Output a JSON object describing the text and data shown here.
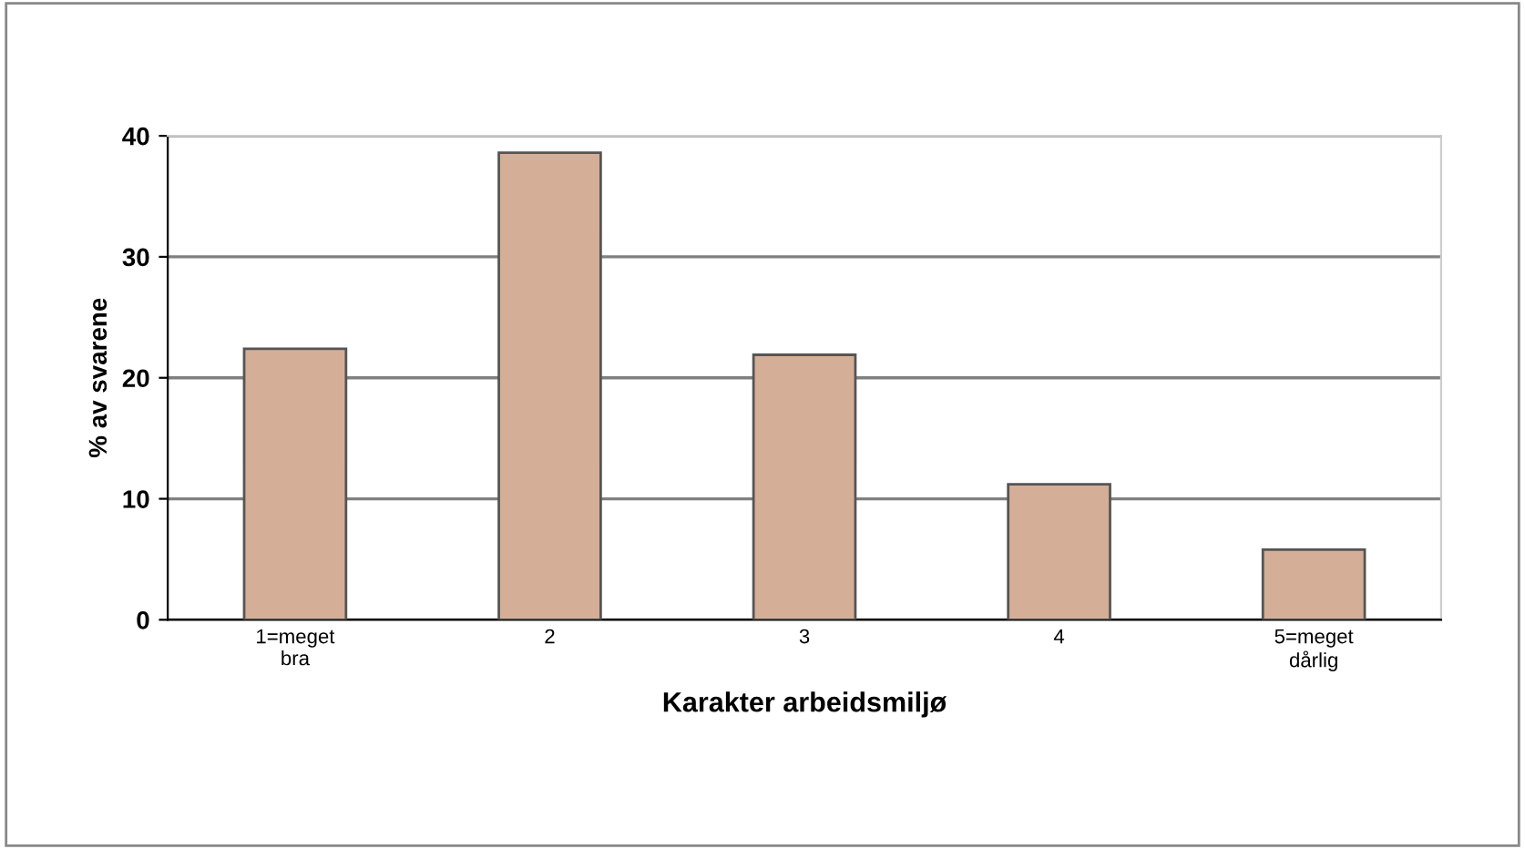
{
  "chart_data": {
    "type": "bar",
    "xlabel": "Karakter arbeidsmiljø",
    "ylabel": "% av svarene",
    "categories": [
      "1=meget\nbra",
      "2",
      "3",
      "4",
      "5=meget\ndårlig"
    ],
    "values": [
      22.4,
      38.6,
      21.9,
      11.2,
      5.8
    ],
    "color": "#d4ae96",
    "ylim": [
      0,
      40
    ],
    "yticks": [
      0,
      10,
      20,
      30,
      40
    ],
    "grid": "y",
    "legend": false
  }
}
